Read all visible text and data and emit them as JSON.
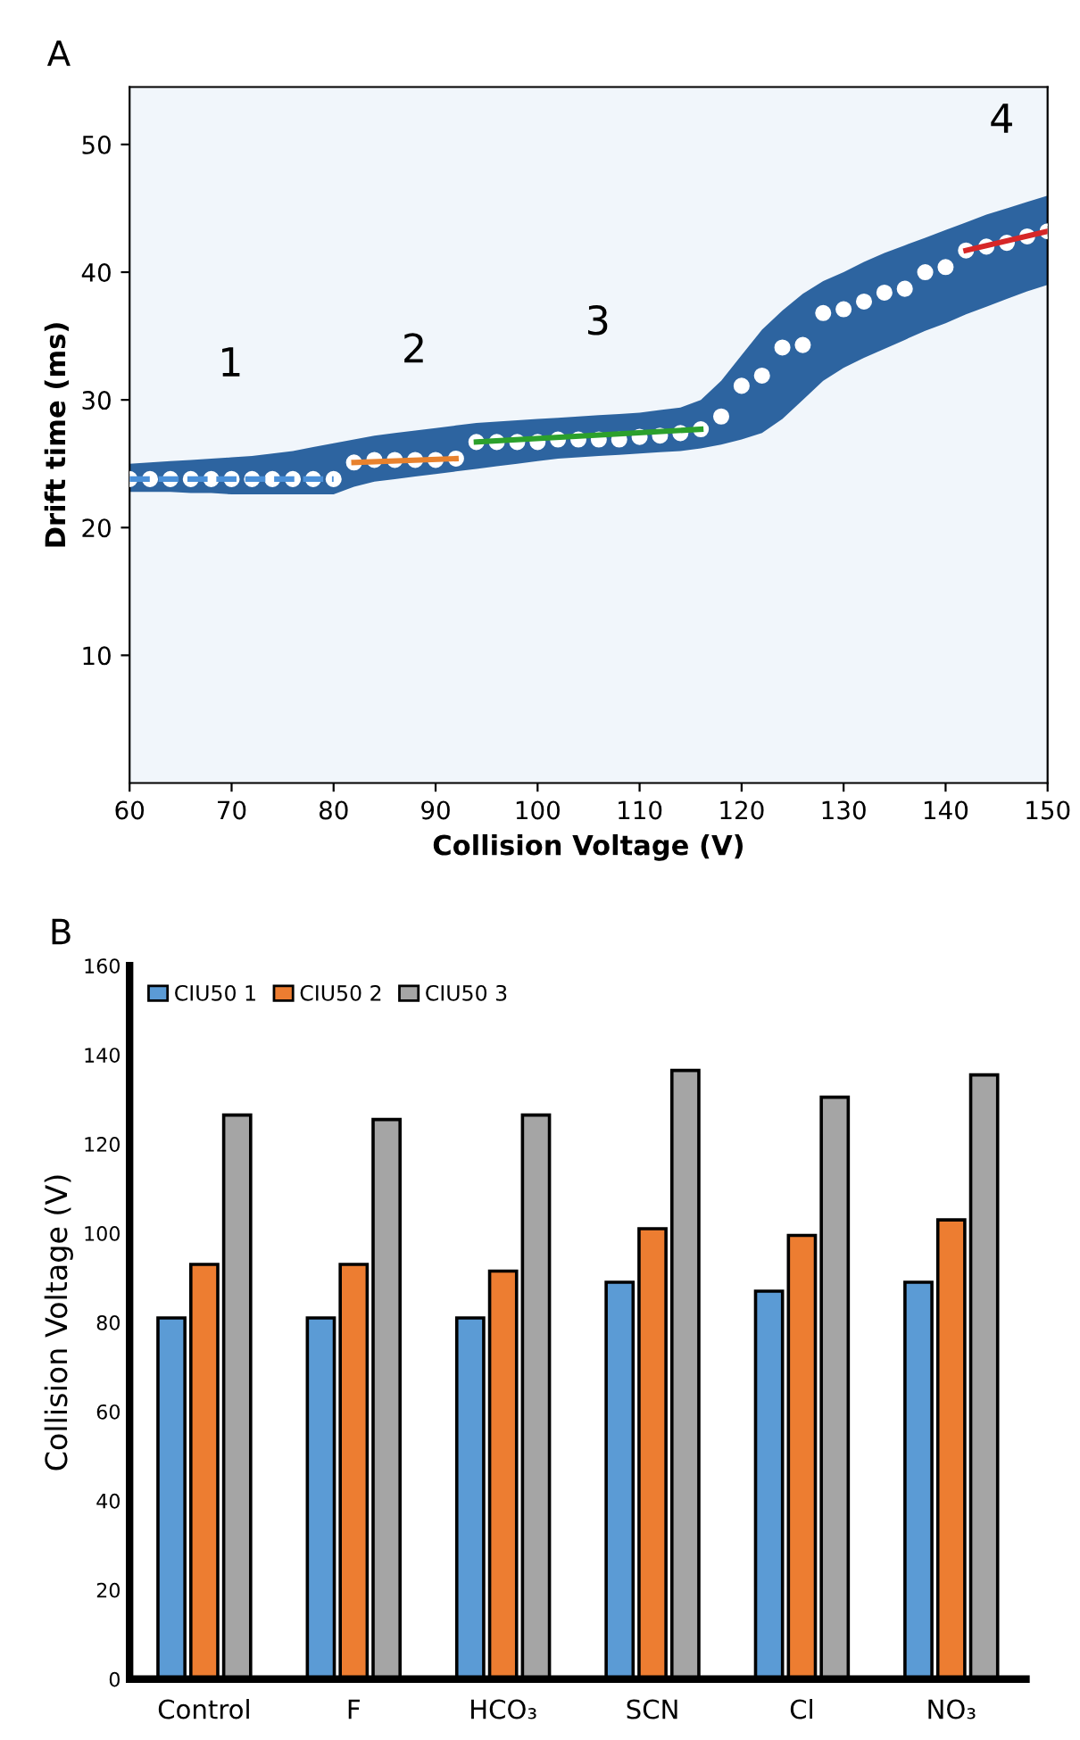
{
  "chart_data": [
    {
      "type": "scatter",
      "title": "A",
      "xlabel": "Collision Voltage (V)",
      "ylabel": "Drift time (ms)",
      "xlim": [
        60,
        150
      ],
      "ylim": [
        0,
        54.5
      ],
      "xticks": [
        60,
        70,
        80,
        90,
        100,
        110,
        120,
        130,
        140,
        150
      ],
      "yticks": [
        10,
        20,
        30,
        40,
        50
      ],
      "grid": false,
      "annotations": [
        "1",
        "2",
        "3",
        "4"
      ],
      "series": [
        {
          "type": "scatter",
          "marker": "circle",
          "color": "#ffffff",
          "x": [
            60,
            62,
            64,
            66,
            68,
            70,
            72,
            74,
            76,
            78,
            80,
            82,
            84,
            86,
            88,
            90,
            92,
            94,
            96,
            98,
            100,
            102,
            104,
            106,
            108,
            110,
            112,
            114,
            116,
            118,
            120,
            122,
            124,
            126,
            128,
            130,
            132,
            134,
            136,
            138,
            140,
            142,
            144,
            146,
            148,
            150
          ],
          "values": [
            23.8,
            23.8,
            23.8,
            23.8,
            23.8,
            23.8,
            23.8,
            23.8,
            23.8,
            23.8,
            23.8,
            25.1,
            25.3,
            25.3,
            25.3,
            25.3,
            25.4,
            26.7,
            26.7,
            26.7,
            26.7,
            26.9,
            26.9,
            26.9,
            26.9,
            27.1,
            27.2,
            27.4,
            27.7,
            28.7,
            31.1,
            31.9,
            34.1,
            34.3,
            36.8,
            37.1,
            37.7,
            38.4,
            38.7,
            40.0,
            40.4,
            41.7,
            42.0,
            42.3,
            42.8,
            43.2
          ],
          "lower": [
            22.8,
            22.8,
            22.8,
            22.7,
            22.7,
            22.6,
            22.6,
            22.6,
            22.6,
            22.6,
            22.6,
            23.2,
            23.6,
            23.8,
            24.0,
            24.2,
            24.4,
            24.6,
            24.8,
            25.0,
            25.2,
            25.4,
            25.5,
            25.6,
            25.7,
            25.8,
            25.9,
            26.0,
            26.2,
            26.5,
            26.9,
            27.4,
            28.5,
            30.0,
            31.5,
            32.5,
            33.3,
            34.0,
            34.7,
            35.4,
            36.0,
            36.7,
            37.3,
            37.9,
            38.5,
            39.0
          ],
          "upper": [
            25.0,
            25.1,
            25.2,
            25.3,
            25.4,
            25.5,
            25.6,
            25.8,
            26.0,
            26.3,
            26.6,
            26.9,
            27.2,
            27.4,
            27.6,
            27.8,
            28.0,
            28.2,
            28.3,
            28.4,
            28.5,
            28.6,
            28.7,
            28.8,
            28.9,
            29.0,
            29.2,
            29.4,
            30.0,
            31.5,
            33.5,
            35.5,
            37.0,
            38.3,
            39.3,
            40.0,
            40.8,
            41.5,
            42.1,
            42.7,
            43.3,
            43.9,
            44.5,
            45.0,
            45.5,
            46.0
          ]
        },
        {
          "type": "line",
          "marker": "none",
          "color": "#4a90d9",
          "line_style": "dashed",
          "x": [
            60,
            80
          ],
          "values": [
            23.8,
            23.8
          ]
        },
        {
          "type": "line",
          "marker": "none",
          "color": "#e8822e",
          "line_style": "solid",
          "x": [
            82,
            92
          ],
          "values": [
            25.1,
            25.4
          ]
        },
        {
          "type": "line",
          "marker": "none",
          "color": "#2ca02c",
          "line_style": "solid",
          "x": [
            94,
            116
          ],
          "values": [
            26.7,
            27.7
          ]
        },
        {
          "type": "line",
          "marker": "none",
          "color": "#d62728",
          "line_style": "solid",
          "x": [
            142,
            150
          ],
          "values": [
            41.7,
            43.2
          ]
        }
      ]
    },
    {
      "type": "bar",
      "title": "B",
      "ylabel": "Collision Voltage (V)",
      "categories": [
        "Control",
        "F",
        "HCO₃",
        "SCN",
        "Cl",
        "NO₃"
      ],
      "ylim": [
        0,
        160
      ],
      "yticks": [
        0,
        20,
        40,
        60,
        80,
        100,
        120,
        140,
        160
      ],
      "grid": false,
      "legend": "top left",
      "series": [
        {
          "name": "CIU50 1",
          "color": "#5b9bd5",
          "values": [
            81,
            81,
            81,
            89,
            87,
            89
          ]
        },
        {
          "name": "CIU50 2",
          "color": "#ed7d31",
          "values": [
            93,
            93,
            91.5,
            101,
            99.5,
            103
          ]
        },
        {
          "name": "CIU50 3",
          "color": "#a5a5a5",
          "values": [
            126.5,
            125.5,
            126.5,
            136.5,
            130.5,
            135.5
          ]
        }
      ]
    }
  ]
}
